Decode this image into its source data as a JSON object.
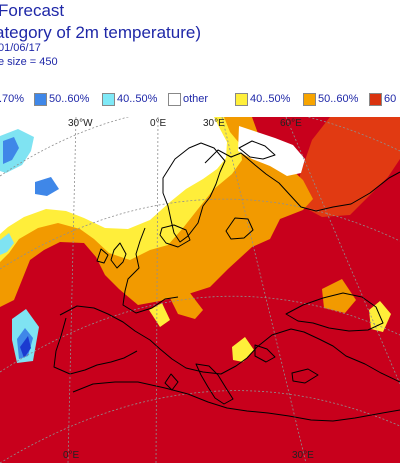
{
  "header": {
    "title": "Forecast",
    "subtitle": "ategory of 2m temperature)",
    "date_line": "01/06/17",
    "size_line": "e size = 450"
  },
  "legend": [
    {
      "label": ".70%",
      "color": "#1b3bd0",
      "icon": "swatch-partial"
    },
    {
      "label": "50..60%",
      "color": "#3f87e8",
      "icon": "swatch"
    },
    {
      "label": "40..50%",
      "color": "#7fe9f7",
      "icon": "swatch"
    },
    {
      "label": "other",
      "color": "#ffffff",
      "icon": "swatch"
    },
    {
      "label": "40..50%",
      "color": "#ffef3a",
      "icon": "swatch"
    },
    {
      "label": "50..60%",
      "color": "#f7a400",
      "icon": "swatch"
    },
    {
      "label": "60",
      "color": "#d9330f",
      "icon": "swatch"
    }
  ],
  "map": {
    "top_longitude_labels": [
      "30°W",
      "0°E",
      "30°E",
      "60°E"
    ],
    "bottom_longitude_labels": [
      "0°E",
      "30°E"
    ],
    "colors": {
      "dark_red": "#c8001c",
      "red": "#e13a12",
      "orange": "#f29a00",
      "yellow": "#ffee3a",
      "white": "#ffffff",
      "light_blue": "#7fe3f2",
      "mid_blue": "#3f87e8",
      "dark_blue": "#1b3bd0",
      "coast": "#000000",
      "grid": "#8f8f8f"
    }
  }
}
